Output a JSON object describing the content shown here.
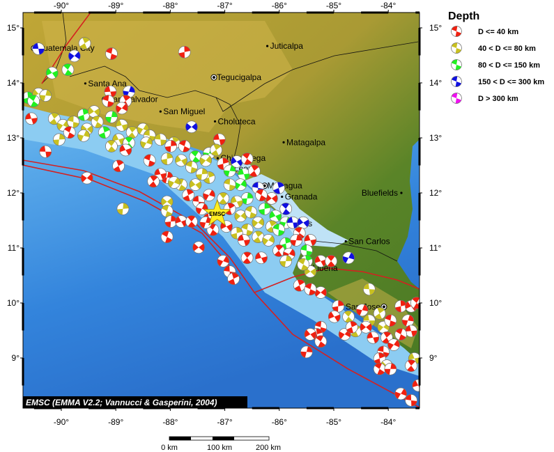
{
  "map": {
    "extent": {
      "lon": [
        -90.7,
        -83.43
      ],
      "lat": [
        8.09,
        15.28
      ]
    },
    "lon_ticks": [
      {
        "value": -90,
        "label": "-90°"
      },
      {
        "value": -89,
        "label": "-89°"
      },
      {
        "value": -88,
        "label": "-88°"
      },
      {
        "value": -87,
        "label": "-87°"
      },
      {
        "value": -86,
        "label": "-86°"
      },
      {
        "value": -85,
        "label": "-85°"
      },
      {
        "value": -84,
        "label": "-84°"
      }
    ],
    "lat_ticks": [
      {
        "value": 15,
        "label": "15°"
      },
      {
        "value": 14,
        "label": "14°"
      },
      {
        "value": 13,
        "label": "13°"
      },
      {
        "value": 12,
        "label": "12°"
      },
      {
        "value": 11,
        "label": "11°"
      },
      {
        "value": 10,
        "label": "10°"
      },
      {
        "value": 9,
        "label": "9°"
      }
    ],
    "credit": "EMSC (EMMA V2.2; Vannucci & Gasperini, 2004)",
    "epicenter": {
      "label": "EMSC",
      "lon": -87.14,
      "lat": 11.62,
      "color": "#ffee22"
    },
    "plate_boundary_color": "#d42020",
    "cities": [
      {
        "name": "Guatemala City",
        "lon": -90.5,
        "lat": 14.63,
        "capital": true
      },
      {
        "name": "Santa Ana",
        "lon": -89.56,
        "lat": 13.99,
        "capital": false
      },
      {
        "name": "San Salvador",
        "lon": -89.2,
        "lat": 13.7,
        "capital": true
      },
      {
        "name": "San Miguel",
        "lon": -88.18,
        "lat": 13.48,
        "capital": false
      },
      {
        "name": "Tegucigalpa",
        "lon": -87.2,
        "lat": 14.1,
        "capital": true
      },
      {
        "name": "Juticalpa",
        "lon": -86.22,
        "lat": 14.67,
        "capital": false
      },
      {
        "name": "Choluteca",
        "lon": -87.18,
        "lat": 13.3,
        "capital": false
      },
      {
        "name": "Matagalpa",
        "lon": -85.92,
        "lat": 12.92,
        "capital": false
      },
      {
        "name": "Chinandega",
        "lon": -87.13,
        "lat": 12.63,
        "capital": false
      },
      {
        "name": "Leon",
        "lon": -86.88,
        "lat": 12.44,
        "capital": false
      },
      {
        "name": "Managua",
        "lon": -86.27,
        "lat": 12.13,
        "capital": true
      },
      {
        "name": "Granada",
        "lon": -85.95,
        "lat": 11.93,
        "capital": false
      },
      {
        "name": "Rivas",
        "lon": -85.83,
        "lat": 11.44,
        "capital": false
      },
      {
        "name": "Bluefields",
        "lon": -83.76,
        "lat": 12.0,
        "capital": false
      },
      {
        "name": "San Carlos",
        "lon": -84.78,
        "lat": 11.12,
        "capital": false
      },
      {
        "name": "Liberia",
        "lon": -85.44,
        "lat": 10.63,
        "capital": false
      },
      {
        "name": "San Jose",
        "lon": -84.08,
        "lat": 9.93,
        "capital": true
      }
    ],
    "events": [
      [
        -90.42,
        14.62,
        3
      ],
      [
        -89.57,
        14.72,
        1
      ],
      [
        -89.76,
        14.49,
        3
      ],
      [
        -89.08,
        14.53,
        0
      ],
      [
        -87.74,
        14.56,
        0
      ],
      [
        -90.17,
        14.18,
        2
      ],
      [
        -89.88,
        14.24,
        2
      ],
      [
        -88.76,
        13.84,
        3
      ],
      [
        -89.1,
        13.84,
        0
      ],
      [
        -88.82,
        13.67,
        0
      ],
      [
        -88.89,
        13.54,
        0
      ],
      [
        -89.14,
        13.67,
        0
      ],
      [
        -90.61,
        13.73,
        2
      ],
      [
        -90.42,
        13.8,
        1
      ],
      [
        -90.51,
        13.67,
        2
      ],
      [
        -90.29,
        13.77,
        1
      ],
      [
        -90.55,
        13.35,
        0
      ],
      [
        -90.13,
        13.35,
        1
      ],
      [
        -89.97,
        13.23,
        1
      ],
      [
        -89.78,
        13.29,
        1
      ],
      [
        -89.59,
        13.42,
        2
      ],
      [
        -89.4,
        13.48,
        1
      ],
      [
        -89.34,
        13.29,
        1
      ],
      [
        -89.08,
        13.38,
        2
      ],
      [
        -88.89,
        13.23,
        1
      ],
      [
        -88.7,
        13.1,
        1
      ],
      [
        -88.5,
        13.16,
        1
      ],
      [
        -88.38,
        13.04,
        1
      ],
      [
        -89.21,
        13.1,
        2
      ],
      [
        -89.53,
        13.16,
        1
      ],
      [
        -89.85,
        13.1,
        0
      ],
      [
        -90.04,
        12.97,
        1
      ],
      [
        -88.95,
        12.97,
        1
      ],
      [
        -88.76,
        12.91,
        2
      ],
      [
        -88.44,
        12.91,
        1
      ],
      [
        -88.18,
        12.97,
        1
      ],
      [
        -87.93,
        12.91,
        1
      ],
      [
        -87.61,
        13.2,
        3
      ],
      [
        -87.74,
        12.85,
        0
      ],
      [
        -87.99,
        12.85,
        0
      ],
      [
        -88.82,
        12.78,
        0
      ],
      [
        -89.08,
        12.85,
        1
      ],
      [
        -89.59,
        13.04,
        1
      ],
      [
        -90.29,
        12.75,
        0
      ],
      [
        -88.95,
        12.49,
        0
      ],
      [
        -89.53,
        12.27,
        0
      ],
      [
        -88.38,
        12.59,
        0
      ],
      [
        -88.06,
        12.62,
        1
      ],
      [
        -87.8,
        12.59,
        1
      ],
      [
        -87.54,
        12.66,
        2
      ],
      [
        -87.29,
        12.72,
        2
      ],
      [
        -87.1,
        12.97,
        0
      ],
      [
        -87.16,
        12.78,
        1
      ],
      [
        -87.35,
        12.59,
        1
      ],
      [
        -87.61,
        12.47,
        1
      ],
      [
        -87.03,
        12.53,
        0
      ],
      [
        -86.78,
        12.57,
        3
      ],
      [
        -86.59,
        12.62,
        0
      ],
      [
        -86.91,
        12.4,
        2
      ],
      [
        -86.65,
        12.34,
        2
      ],
      [
        -86.46,
        12.4,
        0
      ],
      [
        -86.71,
        12.15,
        2
      ],
      [
        -86.91,
        12.15,
        1
      ],
      [
        -87.29,
        12.28,
        1
      ],
      [
        -87.54,
        12.15,
        1
      ],
      [
        -87.8,
        12.15,
        1
      ],
      [
        -88.06,
        12.28,
        0
      ],
      [
        -88.18,
        12.34,
        0
      ],
      [
        -88.31,
        12.21,
        0
      ],
      [
        -87.93,
        12.19,
        1
      ],
      [
        -86.39,
        12.09,
        3
      ],
      [
        -86.01,
        12.09,
        3
      ],
      [
        -86.14,
        11.9,
        0
      ],
      [
        -86.33,
        11.96,
        0
      ],
      [
        -86.59,
        11.9,
        2
      ],
      [
        -86.78,
        11.84,
        1
      ],
      [
        -87.03,
        11.9,
        1
      ],
      [
        -87.29,
        11.96,
        0
      ],
      [
        -87.48,
        11.84,
        0
      ],
      [
        -87.67,
        11.96,
        0
      ],
      [
        -88.06,
        11.84,
        1
      ],
      [
        -88.06,
        11.67,
        1
      ],
      [
        -87.99,
        11.48,
        0
      ],
      [
        -87.8,
        11.48,
        0
      ],
      [
        -87.61,
        11.48,
        0
      ],
      [
        -87.42,
        11.71,
        0
      ],
      [
        -87.29,
        11.52,
        0
      ],
      [
        -86.91,
        11.71,
        0
      ],
      [
        -86.71,
        11.58,
        1
      ],
      [
        -86.52,
        11.65,
        1
      ],
      [
        -86.27,
        11.71,
        2
      ],
      [
        -86.07,
        11.58,
        2
      ],
      [
        -85.88,
        11.71,
        3
      ],
      [
        -85.88,
        11.46,
        2
      ],
      [
        -85.75,
        11.46,
        3
      ],
      [
        -86.14,
        11.39,
        1
      ],
      [
        -86.39,
        11.46,
        1
      ],
      [
        -86.59,
        11.33,
        1
      ],
      [
        -86.78,
        11.27,
        1
      ],
      [
        -86.97,
        11.39,
        0
      ],
      [
        -87.22,
        11.33,
        0
      ],
      [
        -87.35,
        11.46,
        0
      ],
      [
        -86.65,
        11.14,
        0
      ],
      [
        -86.39,
        11.2,
        1
      ],
      [
        -86.2,
        11.14,
        1
      ],
      [
        -86.01,
        11.33,
        2
      ],
      [
        -85.88,
        11.08,
        2
      ],
      [
        -85.56,
        11.46,
        3
      ],
      [
        -85.63,
        11.27,
        0
      ],
      [
        -85.69,
        11.14,
        0
      ],
      [
        -85.43,
        11.14,
        0
      ],
      [
        -86.01,
        10.95,
        0
      ],
      [
        -85.82,
        10.89,
        0
      ],
      [
        -85.5,
        10.95,
        2
      ],
      [
        -85.5,
        10.76,
        2
      ],
      [
        -85.43,
        10.57,
        1
      ],
      [
        -85.56,
        10.7,
        1
      ],
      [
        -85.88,
        10.76,
        1
      ],
      [
        -86.33,
        10.82,
        0
      ],
      [
        -86.59,
        10.82,
        0
      ],
      [
        -87.03,
        10.76,
        0
      ],
      [
        -86.91,
        10.57,
        0
      ],
      [
        -86.84,
        10.44,
        0
      ],
      [
        -87.48,
        11.01,
        0
      ],
      [
        -88.06,
        11.2,
        0
      ],
      [
        -88.87,
        11.71,
        1
      ],
      [
        -85.24,
        10.76,
        0
      ],
      [
        -85.05,
        10.76,
        0
      ],
      [
        -84.73,
        10.82,
        3
      ],
      [
        -84.35,
        10.25,
        1
      ],
      [
        -85.63,
        10.32,
        0
      ],
      [
        -85.24,
        10.19,
        0
      ],
      [
        -85.43,
        10.25,
        0
      ],
      [
        -84.92,
        9.94,
        0
      ],
      [
        -84.99,
        9.75,
        0
      ],
      [
        -84.73,
        9.75,
        1
      ],
      [
        -84.48,
        9.87,
        0
      ],
      [
        -84.35,
        9.68,
        1
      ],
      [
        -84.16,
        9.81,
        1
      ],
      [
        -84.09,
        9.56,
        1
      ],
      [
        -83.96,
        9.68,
        0
      ],
      [
        -83.77,
        9.94,
        0
      ],
      [
        -83.58,
        9.94,
        0
      ],
      [
        -83.48,
        10.0,
        0
      ],
      [
        -83.64,
        9.68,
        0
      ],
      [
        -83.58,
        9.49,
        0
      ],
      [
        -84.6,
        9.49,
        1
      ],
      [
        -84.8,
        9.43,
        0
      ],
      [
        -85.24,
        9.56,
        0
      ],
      [
        -85.31,
        9.43,
        0
      ],
      [
        -85.43,
        9.43,
        0
      ],
      [
        -85.24,
        9.3,
        0
      ],
      [
        -85.5,
        9.11,
        0
      ],
      [
        -84.28,
        9.37,
        0
      ],
      [
        -84.03,
        9.37,
        0
      ],
      [
        -83.9,
        9.24,
        0
      ],
      [
        -84.09,
        9.11,
        0
      ],
      [
        -84.16,
        8.99,
        0
      ],
      [
        -84.03,
        8.86,
        1
      ],
      [
        -84.16,
        8.8,
        0
      ],
      [
        -83.96,
        8.8,
        0
      ],
      [
        -83.52,
        8.99,
        1
      ],
      [
        -83.58,
        8.86,
        0
      ],
      [
        -83.77,
        8.35,
        0
      ],
      [
        -83.58,
        8.23,
        0
      ],
      [
        -84.67,
        9.56,
        0
      ],
      [
        -84.41,
        9.56,
        0
      ],
      [
        -83.77,
        9.43,
        0
      ],
      [
        -87.42,
        12.34,
        1
      ],
      [
        -83.45,
        8.5,
        0
      ]
    ]
  },
  "legend": {
    "title": "Depth",
    "items": [
      {
        "label": "D <= 40 km",
        "color": "#f02010"
      },
      {
        "label": "40 < D <= 80 km",
        "color": "#c8c020"
      },
      {
        "label": "80 < D <= 150 km",
        "color": "#20f020"
      },
      {
        "label": "150 < D <= 300 km",
        "color": "#1010e0"
      },
      {
        "label": "D > 300 km",
        "color": "#f010f0"
      }
    ]
  },
  "scale_bar": {
    "labels": [
      "0 km",
      "100 km",
      "200 km"
    ]
  }
}
